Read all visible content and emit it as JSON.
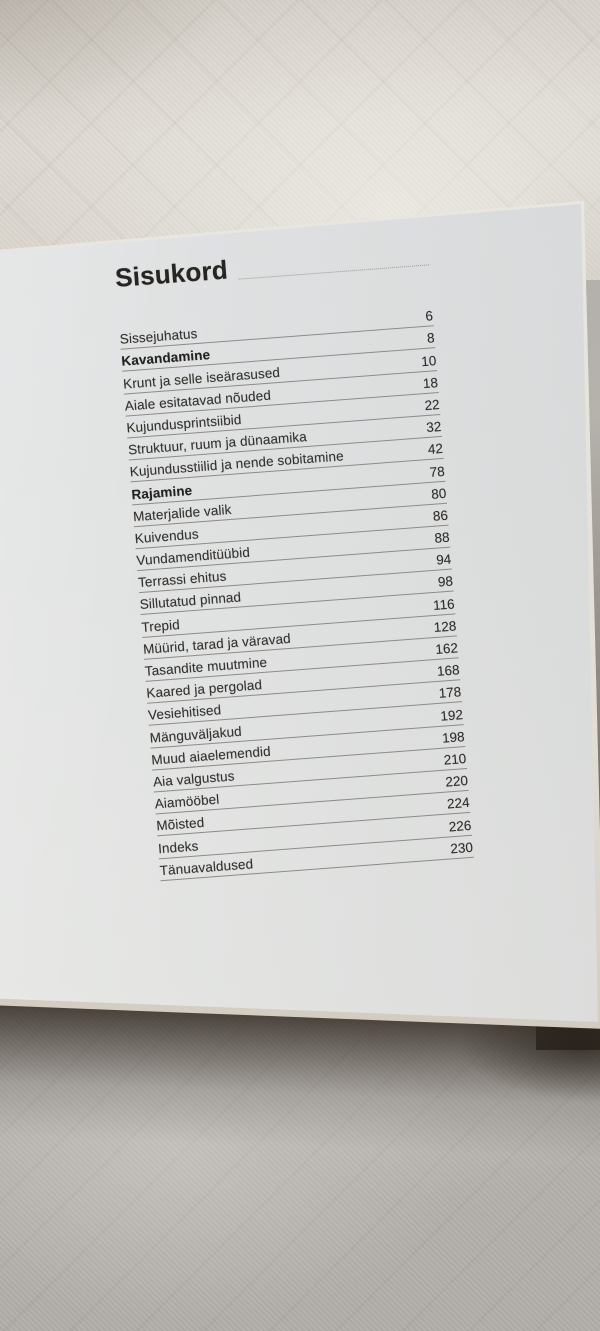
{
  "photo": {
    "colors": {
      "page": "#e2e3e2",
      "fabric_top": "#d8d4cd",
      "fabric_bottom": "#b2afab",
      "text": "#34322f",
      "rule": "#8d8b87",
      "shadow": "#3a3028"
    }
  },
  "page": {
    "title": "Sisukord",
    "toc": [
      {
        "label": "Sissejuhatus",
        "page": "6",
        "bold": false
      },
      {
        "label": "Kavandamine",
        "page": "8",
        "bold": true
      },
      {
        "label": "Krunt ja selle iseärasused",
        "page": "10",
        "bold": false
      },
      {
        "label": "Aiale esitatavad nõuded",
        "page": "18",
        "bold": false
      },
      {
        "label": "Kujundusprintsiibid",
        "page": "22",
        "bold": false
      },
      {
        "label": "Struktuur, ruum ja dünaamika",
        "page": "32",
        "bold": false
      },
      {
        "label": "Kujundusstiilid ja nende sobitamine",
        "page": "42",
        "bold": false
      },
      {
        "label": "Rajamine",
        "page": "78",
        "bold": true
      },
      {
        "label": "Materjalide valik",
        "page": "80",
        "bold": false
      },
      {
        "label": "Kuivendus",
        "page": "86",
        "bold": false
      },
      {
        "label": "Vundamenditüübid",
        "page": "88",
        "bold": false
      },
      {
        "label": "Terrassi ehitus",
        "page": "94",
        "bold": false
      },
      {
        "label": "Sillutatud pinnad",
        "page": "98",
        "bold": false
      },
      {
        "label": "Trepid",
        "page": "116",
        "bold": false
      },
      {
        "label": "Müürid, tarad ja väravad",
        "page": "128",
        "bold": false
      },
      {
        "label": "Tasandite muutmine",
        "page": "162",
        "bold": false
      },
      {
        "label": "Kaared ja pergolad",
        "page": "168",
        "bold": false
      },
      {
        "label": "Vesiehitised",
        "page": "178",
        "bold": false
      },
      {
        "label": "Mänguväljakud",
        "page": "192",
        "bold": false
      },
      {
        "label": "Muud aiaelemendid",
        "page": "198",
        "bold": false
      },
      {
        "label": "Aia valgustus",
        "page": "210",
        "bold": false
      },
      {
        "label": "Aiamööbel",
        "page": "220",
        "bold": false
      },
      {
        "label": "Mõisted",
        "page": "224",
        "bold": false
      },
      {
        "label": "Indeks",
        "page": "226",
        "bold": false
      },
      {
        "label": "Tänuavaldused",
        "page": "230",
        "bold": false
      }
    ]
  }
}
